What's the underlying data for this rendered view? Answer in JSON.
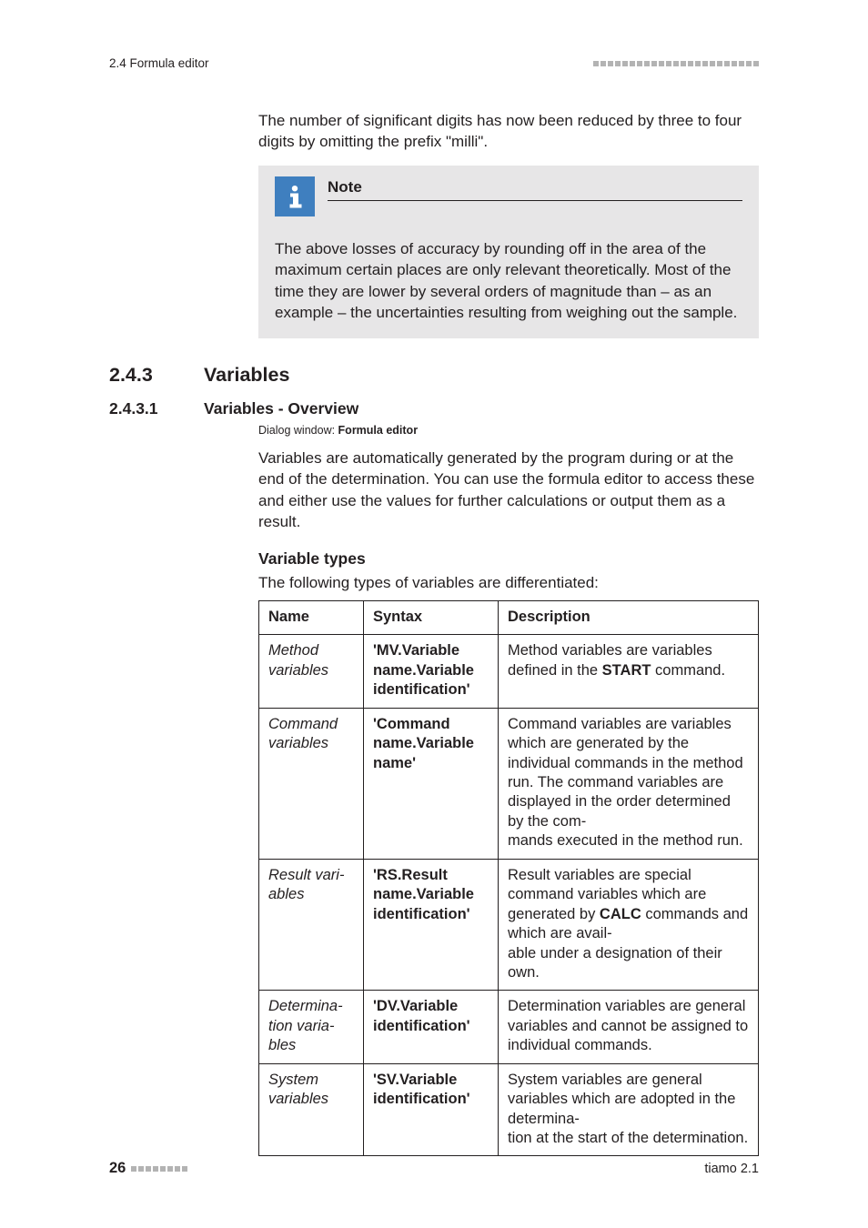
{
  "header": {
    "left": "2.4 Formula editor",
    "box_count": 23,
    "box_color": "#b3b3b3"
  },
  "intro_para": "The number of significant digits has now been reduced by three to four digits by omitting the prefix \"milli\".",
  "note": {
    "title": "Note",
    "bg": "#e7e6e7",
    "icon_bg": "#3f7fbf",
    "icon_fg": "#ffffff",
    "body": "The above losses of accuracy by rounding off in the area of the maximum certain places are only relevant theoretically. Most of the time they are lower by several orders of magnitude than – as an example – the uncertainties resulting from weighing out the sample."
  },
  "section": {
    "num": "2.4.3",
    "title": "Variables"
  },
  "subsection": {
    "num": "2.4.3.1",
    "title": "Variables - Overview"
  },
  "dialog_line": {
    "label": "Dialog window: ",
    "value": "Formula editor"
  },
  "overview_para": "Variables are automatically generated by the program during or at the end of the determination. You can use the formula editor to access these and either use the values for further calculations or output them as a result.",
  "vartypes_heading": "Variable types",
  "vartypes_intro": "The following types of variables are differentiated:",
  "table": {
    "columns": [
      "Name",
      "Syntax",
      "Description"
    ],
    "rows": [
      {
        "name": "Method variables",
        "syntax": "'MV.Variable name.Variable identification'",
        "desc_pre": "Method variables are variables defined in the ",
        "desc_bold": "START",
        "desc_post": " command."
      },
      {
        "name": "Command variables",
        "syntax": "'Command name.Variable name'",
        "desc_pre": "Command variables are variables which are generated by the individual commands in the method run. The command variables are displayed in the order determined by the commands executed in the method run.",
        "desc_bold": "",
        "desc_post": ""
      },
      {
        "name": "Result variables",
        "syntax": "'RS.Result name.Variable identification'",
        "desc_pre": "Result variables are special command variables which are generated by ",
        "desc_bold": "CALC",
        "desc_post": " commands and which are available under a designation of their own."
      },
      {
        "name": "Determination variables",
        "syntax": "'DV.Variable identification'",
        "desc_pre": "Determination variables are general variables and cannot be assigned to individual commands.",
        "desc_bold": "",
        "desc_post": ""
      },
      {
        "name": "System variables",
        "syntax": "'SV.Variable identification'",
        "desc_pre": "System variables are general variables which are adopted in the determination at the start of the determination.",
        "desc_bold": "",
        "desc_post": ""
      }
    ]
  },
  "footer": {
    "page": "26",
    "box_count": 8,
    "box_color": "#b3b3b3",
    "right": "tiamo 2.1"
  }
}
